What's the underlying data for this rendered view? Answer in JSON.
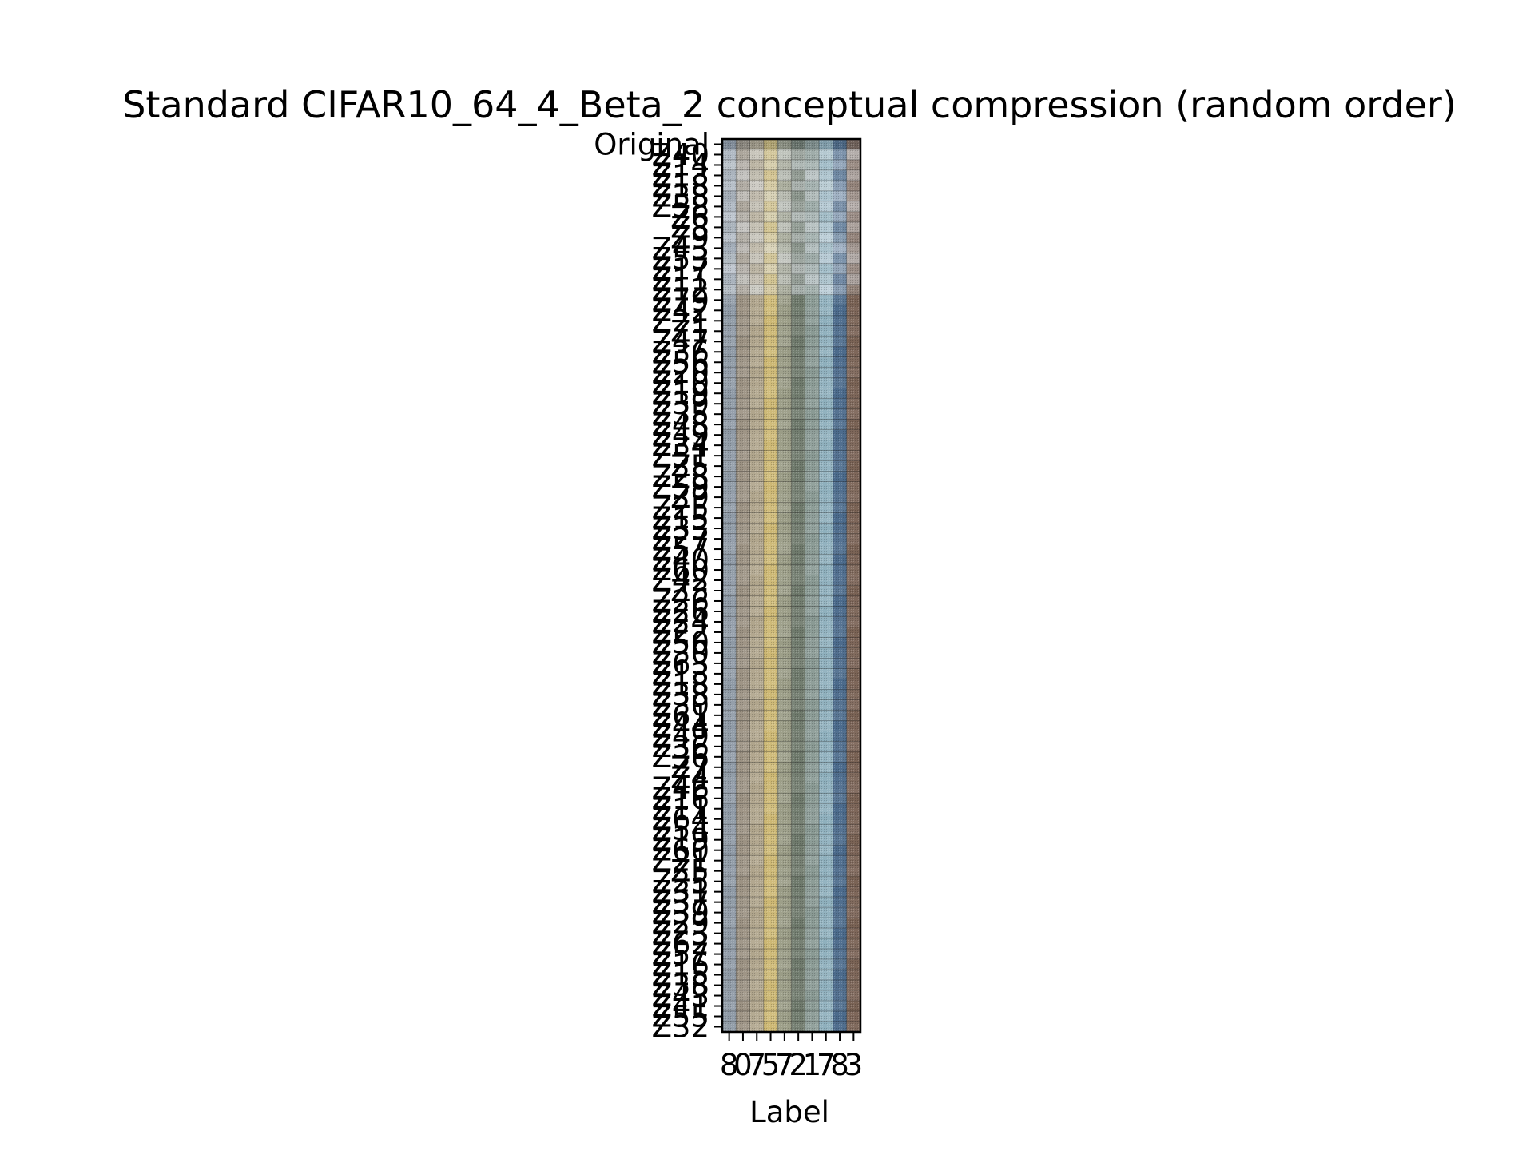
{
  "chart_data": {
    "type": "heatmap",
    "title": "Standard CIFAR10_64_4_Beta_2 conceptual compression (random order)",
    "xlabel": "Label",
    "ylabel": "",
    "x_tick_labels": [
      "8",
      "0",
      "7",
      "5",
      "7",
      "2",
      "1",
      "7",
      "8",
      "3"
    ],
    "y_tick_labels": [
      "Original",
      "Z40",
      "Z14",
      "Z13",
      "Z18",
      "Z38",
      "Z58",
      "Z6",
      "Z8",
      "Z9",
      "Z43",
      "Z53",
      "Z17",
      "Z11",
      "Z12",
      "Z79",
      "Z42",
      "Z21",
      "Z1",
      "Z47",
      "Z36",
      "Z56",
      "Z20",
      "Z10",
      "Z19",
      "Z39",
      "Z35",
      "Z48",
      "Z49",
      "Z34",
      "Z51",
      "Z5",
      "Z28",
      "Z59",
      "Z9",
      "Z25",
      "Z15",
      "Z33",
      "Z27",
      "Z57",
      "Z40",
      "Z60",
      "Z42",
      "Z3",
      "Z26",
      "Z26",
      "Z24",
      "Z22",
      "Z50",
      "Z30",
      "Z63",
      "Z13",
      "Z18",
      "Z38",
      "Z30",
      "Z61",
      "Z44",
      "Z49",
      "Z36",
      "Z36",
      "Z7",
      "Z4",
      "Z46",
      "Z16",
      "Z11",
      "Z64",
      "Z54",
      "Z19",
      "Z60",
      "Z21",
      "Z5",
      "Z25",
      "Z31",
      "Z37",
      "Z39",
      "Z29",
      "Z23",
      "Z62",
      "Z57",
      "Z16",
      "Z15",
      "Z38",
      "Z43",
      "Z41",
      "Z55",
      "Z32"
    ],
    "grid": false,
    "legend": "none",
    "column_tones": [
      "#8f9aa6",
      "#9c9283",
      "#b0a58c",
      "#cdb874",
      "#9a9c86",
      "#6f7a6c",
      "#8a9a94",
      "#8fb0bd",
      "#4c6b8c",
      "#7a6355"
    ],
    "row_tones": [
      "#4d5a68",
      "#e3e8ee",
      "#e0e6ec",
      "#dde2e6"
    ]
  }
}
